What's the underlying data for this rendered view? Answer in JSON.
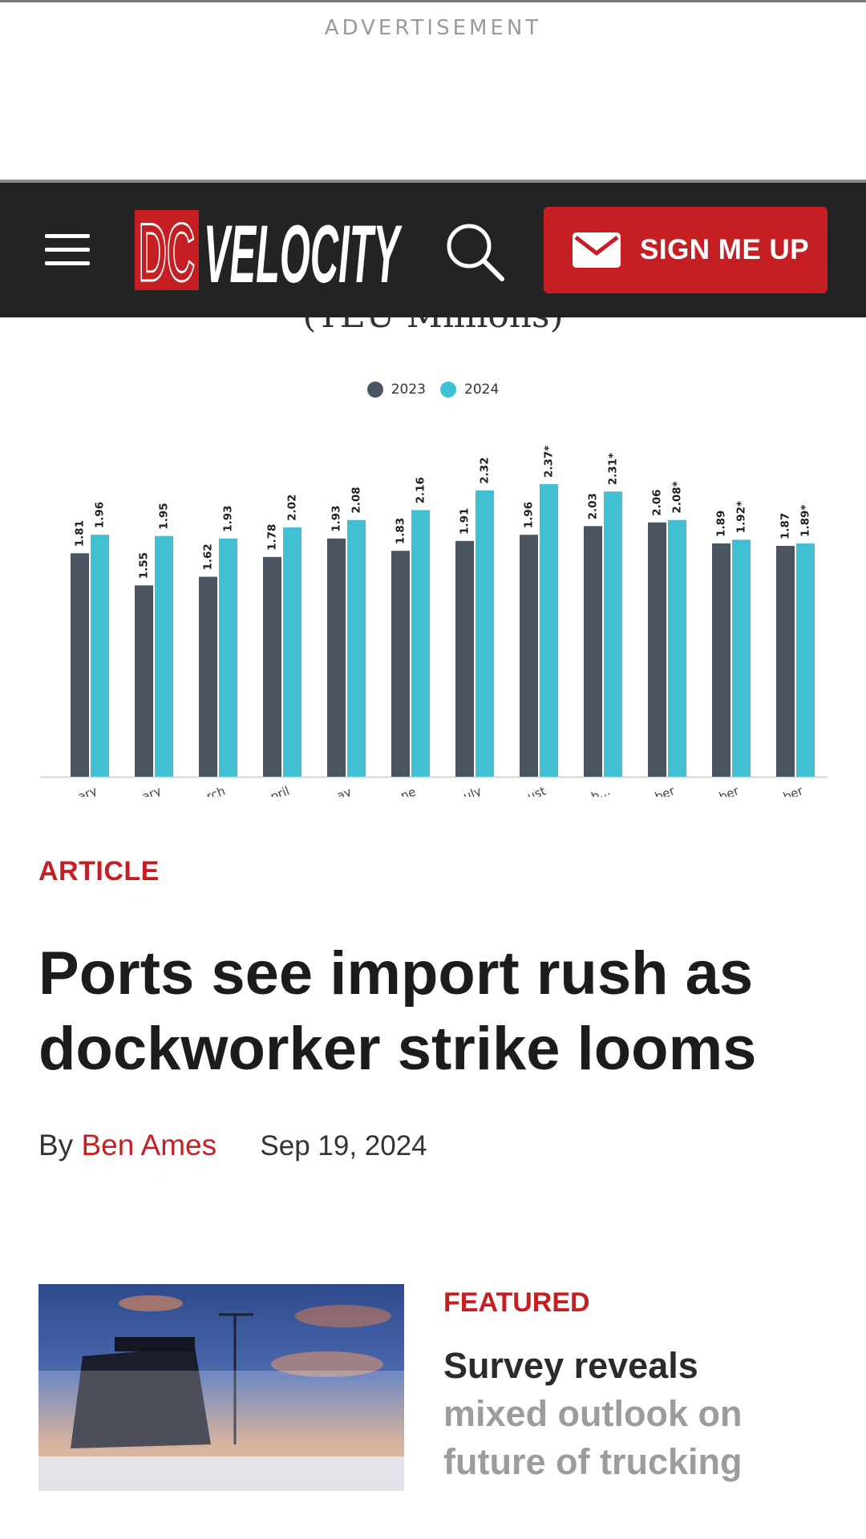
{
  "advertisement": {
    "label": "ADVERTISEMENT"
  },
  "header": {
    "logo_text": "DC VELOCITY",
    "menu_icon": "hamburger-menu-icon",
    "search_icon": "search-icon",
    "signup": {
      "label": "SIGN ME UP",
      "icon": "mail-icon"
    },
    "colors": {
      "background": "#232323",
      "accent": "#c51f24"
    }
  },
  "chart_data": {
    "type": "bar",
    "title": "(TEU Millions)",
    "categories": [
      "January",
      "February",
      "March",
      "April",
      "May",
      "June",
      "July",
      "August",
      "September",
      "October",
      "November",
      "December"
    ],
    "series": [
      {
        "name": "2023",
        "color": "#4a5561",
        "values": [
          1.81,
          1.55,
          1.62,
          1.78,
          1.93,
          1.83,
          1.91,
          1.96,
          2.03,
          2.06,
          1.89,
          1.87
        ],
        "labels": [
          "1.81",
          "1.55",
          "1.62",
          "1.78",
          "1.93",
          "1.83",
          "1.91",
          "1.96",
          "2.03",
          "2.06",
          "1.89",
          "1.87"
        ]
      },
      {
        "name": "2024",
        "color": "#3fc1d3",
        "values": [
          1.96,
          1.95,
          1.93,
          2.02,
          2.08,
          2.16,
          2.32,
          2.37,
          2.31,
          2.08,
          1.92,
          1.89
        ],
        "labels": [
          "1.96",
          "1.95",
          "1.93",
          "2.02",
          "2.08",
          "2.16",
          "2.32",
          "2.37*",
          "2.31*",
          "2.08*",
          "1.92*",
          "1.89*"
        ]
      }
    ],
    "visible_tick_labels": [
      "ary",
      "ary",
      "rch",
      "pril",
      "ay",
      "ne",
      "uly",
      "ust",
      "b...",
      "ber",
      "ber",
      "ber"
    ],
    "legend": "top-center",
    "grid": false
  },
  "article": {
    "kicker": "ARTICLE",
    "headline": "Ports see import rush as dockworker strike looms",
    "byline_prefix": "By",
    "author": "Ben Ames",
    "date": "Sep 19, 2024"
  },
  "featured": {
    "kicker": "FEATURED",
    "title_line1": "Survey reveals",
    "title_rest": "mixed outlook on future of trucking",
    "image_subject": "truck-at-sunset-image"
  }
}
